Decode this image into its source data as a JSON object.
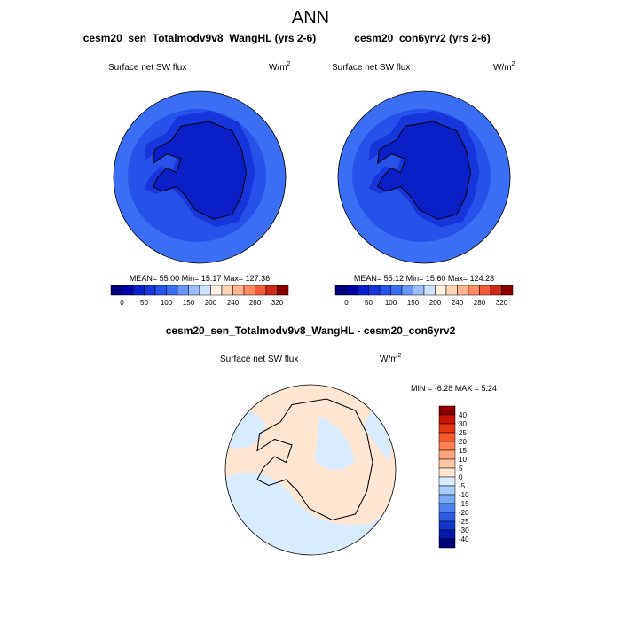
{
  "title": "ANN",
  "panels": [
    {
      "title": "cesm20_sen_Totalmodv9v8_WangHL (yrs 2-6)",
      "variable": "Surface net SW flux",
      "unit": "W/m",
      "unit_exponent": "2",
      "stats": "MEAN=  55.00  Min=  15.17  Max= 127.36"
    },
    {
      "title": "cesm20_con6yrv2 (yrs 2-6)",
      "variable": "Surface net SW flux",
      "unit": "W/m",
      "unit_exponent": "2",
      "stats": "MEAN=  55.12  Min=  15.60  Max= 124.23"
    },
    {
      "title": "cesm20_sen_Totalmodv9v8_WangHL - cesm20_con6yrv2",
      "variable": "Surface net SW flux",
      "unit": "W/m",
      "unit_exponent": "2",
      "stats": "MIN =  -6.28 MAX =   5.24"
    }
  ],
  "colorbar_top": {
    "labels": [
      0,
      50,
      100,
      150,
      200,
      240,
      280,
      320
    ],
    "colors": [
      "#00007a",
      "#0000a8",
      "#0a1fc8",
      "#1436dc",
      "#2452ea",
      "#3a6ff4",
      "#6a96fa",
      "#9dbcfd",
      "#cfe2ff",
      "#fff1e2",
      "#ffd5b8",
      "#ffb38e",
      "#ff8a62",
      "#f35a36",
      "#d2281a",
      "#8a0000"
    ]
  },
  "colorbar_diff": {
    "labels": [
      40,
      30,
      25,
      20,
      15,
      10,
      5,
      0,
      -5,
      -10,
      -15,
      -20,
      -25,
      -30,
      -40
    ],
    "colors": [
      "#8a0000",
      "#c81400",
      "#e63510",
      "#f75a2a",
      "#ff8050",
      "#ffa47a",
      "#ffc6a2",
      "#ffe6d2",
      "#d8ebff",
      "#a8cbff",
      "#7aa8f8",
      "#4c82ee",
      "#2a5ce2",
      "#1236cc",
      "#0818aa",
      "#000078"
    ]
  }
}
